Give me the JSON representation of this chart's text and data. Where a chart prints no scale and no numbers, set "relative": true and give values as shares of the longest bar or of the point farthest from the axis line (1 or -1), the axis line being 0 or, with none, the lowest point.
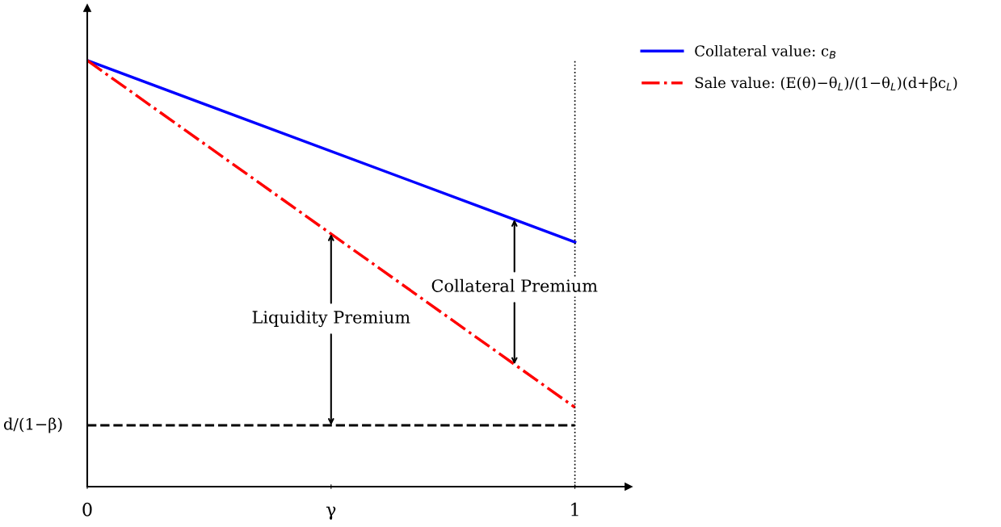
{
  "chart_data": {
    "type": "line",
    "relative": true,
    "x": [
      0,
      1
    ],
    "xlim": [
      0,
      1.11
    ],
    "xticks": [
      0,
      {
        "value": 0.5,
        "label": "γ"
      },
      1
    ],
    "series": [
      {
        "name": "Collateral value: c$_{B}$",
        "color": "#0000ff",
        "values": [
          1,
          0.574
        ],
        "line_style": "solid"
      },
      {
        "name": "Sale value: (E(θ)−θ$_{L}$)/(1−θ$_{L}$)(d+βc$_{L}$)",
        "color": "#ff0000",
        "values": [
          1,
          0.186
        ],
        "line_style": "dashdot"
      }
    ],
    "ref_lines": [
      {
        "axis": "y",
        "value": 0.144,
        "label": "d/(1−β)",
        "color": "#000000",
        "line_style": "dashed"
      },
      {
        "axis": "x",
        "value": 1,
        "color": "#000000",
        "line_style": "dotted"
      }
    ],
    "annotations": [
      "Liquidity Premium",
      "Collateral Premium"
    ],
    "legend": "top right",
    "grid": false,
    "marker": "none"
  }
}
